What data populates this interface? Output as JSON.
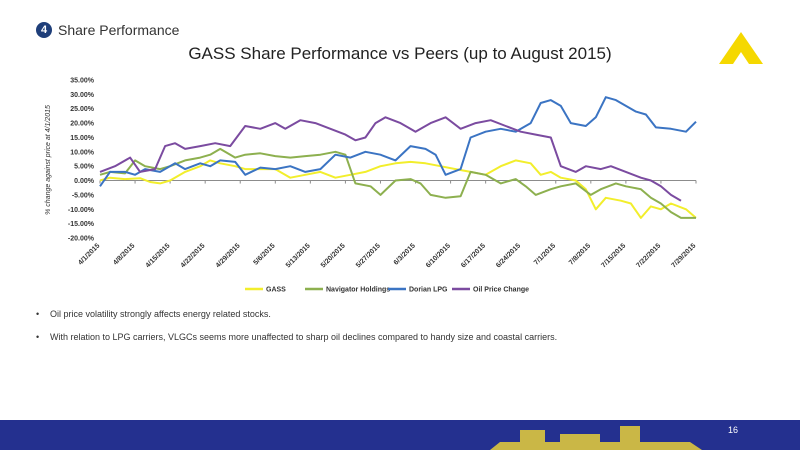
{
  "section": {
    "number": "4",
    "title": "Share Performance"
  },
  "colors": {
    "gass": "#f2ee2c",
    "navigator": "#8db04f",
    "dorian": "#3b74c3",
    "oil": "#7b4ba0",
    "footer": "#24308f",
    "logo": "#f5d800"
  },
  "bullets": [
    "Oil price volatility strongly affects energy related stocks.",
    "With relation to LPG carriers, VLGCs seems more unaffected to sharp oil declines compared to handy size and coastal carriers."
  ],
  "page_number": "16",
  "chart_data": {
    "type": "line",
    "title": "GASS Share Performance vs Peers (up to August 2015)",
    "ylabel": "% change against price at 4/1/2015",
    "ylim": [
      -20,
      35
    ],
    "yticks": [
      "-20.00%",
      "-15.00%",
      "-10.00%",
      "-5.00%",
      "0.00%",
      "5.00%",
      "10.00%",
      "15.00%",
      "20.00%",
      "25.00%",
      "30.00%",
      "35.00%"
    ],
    "x_tick_labels": [
      "4/1/2015",
      "4/8/2015",
      "4/15/2015",
      "4/22/2015",
      "4/29/2015",
      "5/6/2015",
      "5/13/2015",
      "5/20/2015",
      "5/27/2015",
      "6/3/2015",
      "6/10/2015",
      "6/17/2015",
      "6/24/2015",
      "7/1/2015",
      "7/8/2015",
      "7/15/2015",
      "7/22/2015",
      "7/29/2015"
    ],
    "x_start": "2015-04-01",
    "x_end": "2015-07-29",
    "grid": false,
    "legend_position": "bottom",
    "series": [
      {
        "name": "GASS",
        "points": [
          [
            "2015-04-01",
            0
          ],
          [
            "2015-04-03",
            1
          ],
          [
            "2015-04-06",
            0.5
          ],
          [
            "2015-04-09",
            0.8
          ],
          [
            "2015-04-11",
            -0.5
          ],
          [
            "2015-04-13",
            -1
          ],
          [
            "2015-04-15",
            0
          ],
          [
            "2015-04-18",
            3
          ],
          [
            "2015-04-21",
            5
          ],
          [
            "2015-04-23",
            7
          ],
          [
            "2015-04-25",
            6
          ],
          [
            "2015-04-28",
            5
          ],
          [
            "2015-04-30",
            4
          ],
          [
            "2015-05-03",
            4
          ],
          [
            "2015-05-06",
            4
          ],
          [
            "2015-05-09",
            1
          ],
          [
            "2015-05-12",
            2
          ],
          [
            "2015-05-15",
            3
          ],
          [
            "2015-05-18",
            1
          ],
          [
            "2015-05-21",
            2
          ],
          [
            "2015-05-24",
            3
          ],
          [
            "2015-05-27",
            5
          ],
          [
            "2015-05-30",
            6
          ],
          [
            "2015-06-02",
            6.5
          ],
          [
            "2015-06-05",
            6
          ],
          [
            "2015-06-08",
            5
          ],
          [
            "2015-06-11",
            4
          ],
          [
            "2015-06-14",
            3
          ],
          [
            "2015-06-17",
            2
          ],
          [
            "2015-06-20",
            5
          ],
          [
            "2015-06-23",
            7
          ],
          [
            "2015-06-26",
            6
          ],
          [
            "2015-06-28",
            2
          ],
          [
            "2015-06-30",
            3
          ],
          [
            "2015-07-02",
            1
          ],
          [
            "2015-07-05",
            0
          ],
          [
            "2015-07-07",
            -3
          ],
          [
            "2015-07-09",
            -10
          ],
          [
            "2015-07-11",
            -6
          ],
          [
            "2015-07-14",
            -7
          ],
          [
            "2015-07-16",
            -8
          ],
          [
            "2015-07-18",
            -13
          ],
          [
            "2015-07-20",
            -9
          ],
          [
            "2015-07-22",
            -10
          ],
          [
            "2015-07-24",
            -8
          ],
          [
            "2015-07-27",
            -10
          ],
          [
            "2015-07-29",
            -13
          ]
        ]
      },
      {
        "name": "Navigator Holdings",
        "points": [
          [
            "2015-04-01",
            2
          ],
          [
            "2015-04-03",
            3
          ],
          [
            "2015-04-06",
            2.5
          ],
          [
            "2015-04-08",
            7
          ],
          [
            "2015-04-10",
            5
          ],
          [
            "2015-04-13",
            4
          ],
          [
            "2015-04-15",
            5
          ],
          [
            "2015-04-18",
            7
          ],
          [
            "2015-04-21",
            8
          ],
          [
            "2015-04-23",
            9
          ],
          [
            "2015-04-25",
            11
          ],
          [
            "2015-04-28",
            8
          ],
          [
            "2015-04-30",
            9
          ],
          [
            "2015-05-03",
            9.5
          ],
          [
            "2015-05-06",
            8.5
          ],
          [
            "2015-05-09",
            8
          ],
          [
            "2015-05-12",
            8.5
          ],
          [
            "2015-05-15",
            9
          ],
          [
            "2015-05-18",
            10
          ],
          [
            "2015-05-20",
            9
          ],
          [
            "2015-05-22",
            -1
          ],
          [
            "2015-05-25",
            -2
          ],
          [
            "2015-05-27",
            -5
          ],
          [
            "2015-05-30",
            0
          ],
          [
            "2015-06-02",
            0.5
          ],
          [
            "2015-06-04",
            -1
          ],
          [
            "2015-06-06",
            -5
          ],
          [
            "2015-06-09",
            -6
          ],
          [
            "2015-06-12",
            -5.5
          ],
          [
            "2015-06-14",
            3
          ],
          [
            "2015-06-17",
            2
          ],
          [
            "2015-06-20",
            -1
          ],
          [
            "2015-06-23",
            0.5
          ],
          [
            "2015-06-25",
            -2
          ],
          [
            "2015-06-27",
            -5
          ],
          [
            "2015-06-30",
            -3
          ],
          [
            "2015-07-02",
            -2
          ],
          [
            "2015-07-05",
            -1
          ],
          [
            "2015-07-08",
            -5
          ],
          [
            "2015-07-10",
            -3
          ],
          [
            "2015-07-13",
            -1
          ],
          [
            "2015-07-15",
            -2
          ],
          [
            "2015-07-18",
            -3
          ],
          [
            "2015-07-20",
            -6
          ],
          [
            "2015-07-22",
            -8
          ],
          [
            "2015-07-24",
            -11
          ],
          [
            "2015-07-26",
            -13
          ],
          [
            "2015-07-29",
            -13
          ]
        ]
      },
      {
        "name": "Dorian LPG",
        "points": [
          [
            "2015-04-01",
            -2
          ],
          [
            "2015-04-03",
            3
          ],
          [
            "2015-04-06",
            3
          ],
          [
            "2015-04-08",
            2
          ],
          [
            "2015-04-10",
            4
          ],
          [
            "2015-04-13",
            3
          ],
          [
            "2015-04-16",
            6
          ],
          [
            "2015-04-18",
            4
          ],
          [
            "2015-04-21",
            6
          ],
          [
            "2015-04-23",
            5
          ],
          [
            "2015-04-25",
            7
          ],
          [
            "2015-04-28",
            6.5
          ],
          [
            "2015-04-30",
            2
          ],
          [
            "2015-05-03",
            4.5
          ],
          [
            "2015-05-06",
            4
          ],
          [
            "2015-05-09",
            5
          ],
          [
            "2015-05-12",
            3
          ],
          [
            "2015-05-15",
            4
          ],
          [
            "2015-05-18",
            9
          ],
          [
            "2015-05-21",
            8
          ],
          [
            "2015-05-24",
            10
          ],
          [
            "2015-05-27",
            9
          ],
          [
            "2015-05-30",
            7
          ],
          [
            "2015-06-02",
            12
          ],
          [
            "2015-06-05",
            11
          ],
          [
            "2015-06-07",
            9
          ],
          [
            "2015-06-09",
            2
          ],
          [
            "2015-06-12",
            4
          ],
          [
            "2015-06-14",
            15
          ],
          [
            "2015-06-17",
            17
          ],
          [
            "2015-06-20",
            18
          ],
          [
            "2015-06-23",
            17
          ],
          [
            "2015-06-26",
            20
          ],
          [
            "2015-06-28",
            27
          ],
          [
            "2015-06-30",
            28
          ],
          [
            "2015-07-02",
            26
          ],
          [
            "2015-07-04",
            20
          ],
          [
            "2015-07-07",
            19
          ],
          [
            "2015-07-09",
            22
          ],
          [
            "2015-07-11",
            29
          ],
          [
            "2015-07-13",
            28
          ],
          [
            "2015-07-15",
            26
          ],
          [
            "2015-07-17",
            24
          ],
          [
            "2015-07-19",
            23
          ],
          [
            "2015-07-21",
            18.5
          ],
          [
            "2015-07-24",
            18
          ],
          [
            "2015-07-27",
            17
          ],
          [
            "2015-07-29",
            20.5
          ]
        ]
      },
      {
        "name": "Oil Price Change",
        "points": [
          [
            "2015-04-01",
            3
          ],
          [
            "2015-04-04",
            5
          ],
          [
            "2015-04-07",
            8
          ],
          [
            "2015-04-09",
            3
          ],
          [
            "2015-04-12",
            4
          ],
          [
            "2015-04-14",
            12
          ],
          [
            "2015-04-16",
            13
          ],
          [
            "2015-04-18",
            11
          ],
          [
            "2015-04-21",
            12
          ],
          [
            "2015-04-24",
            13
          ],
          [
            "2015-04-27",
            12
          ],
          [
            "2015-04-30",
            19
          ],
          [
            "2015-05-03",
            18
          ],
          [
            "2015-05-06",
            20
          ],
          [
            "2015-05-08",
            18
          ],
          [
            "2015-05-11",
            21
          ],
          [
            "2015-05-14",
            20
          ],
          [
            "2015-05-17",
            18
          ],
          [
            "2015-05-20",
            16
          ],
          [
            "2015-05-22",
            14
          ],
          [
            "2015-05-24",
            15
          ],
          [
            "2015-05-26",
            20
          ],
          [
            "2015-05-28",
            22
          ],
          [
            "2015-05-31",
            20
          ],
          [
            "2015-06-03",
            17
          ],
          [
            "2015-06-06",
            20
          ],
          [
            "2015-06-09",
            22
          ],
          [
            "2015-06-12",
            18
          ],
          [
            "2015-06-15",
            20
          ],
          [
            "2015-06-18",
            21
          ],
          [
            "2015-06-21",
            19
          ],
          [
            "2015-06-24",
            17
          ],
          [
            "2015-06-27",
            16
          ],
          [
            "2015-06-30",
            15
          ],
          [
            "2015-07-02",
            5
          ],
          [
            "2015-07-05",
            3
          ],
          [
            "2015-07-07",
            5
          ],
          [
            "2015-07-10",
            4
          ],
          [
            "2015-07-12",
            5
          ],
          [
            "2015-07-15",
            3
          ],
          [
            "2015-07-18",
            1
          ],
          [
            "2015-07-20",
            0
          ],
          [
            "2015-07-22",
            -2
          ],
          [
            "2015-07-24",
            -5
          ],
          [
            "2015-07-26",
            -7
          ]
        ]
      }
    ]
  }
}
